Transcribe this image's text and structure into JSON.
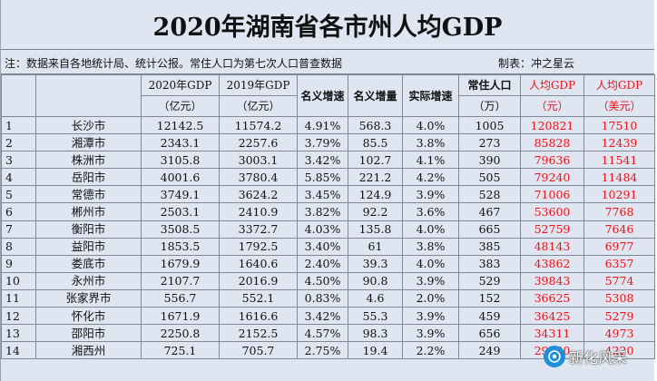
{
  "title": "2020年湖南省各市州人均GDP",
  "note": {
    "source": "注：数据来自各地统计局、统计公报。常住人口为第七次人口普查数据",
    "maker": "制表：冲之星云"
  },
  "header": {
    "gdp2020_line1": "2020年GDP",
    "gdp2020_line2": "（亿元）",
    "gdp2019_line1": "2019年GDP",
    "gdp2019_line2": "（亿元）",
    "nominal_rate": "名义增速",
    "nominal_increase": "名义增量",
    "real_rate": "实际增速",
    "population_line1": "常住人口",
    "population_line2": "（万）",
    "percap_cny_line1": "人均GDP",
    "percap_cny_line2": "（元）",
    "percap_usd_line1": "人均GDP",
    "percap_usd_line2": "（美元）"
  },
  "rows": [
    {
      "idx": "1",
      "city": "长沙市",
      "gdp2020": "12142.5",
      "gdp2019": "11574.2",
      "nominal_rate": "4.91%",
      "nominal_increase": "568.3",
      "real_rate": "4.0%",
      "population": "1005",
      "percap_cny": "120821",
      "percap_usd": "17510"
    },
    {
      "idx": "2",
      "city": "湘潭市",
      "gdp2020": "2343.1",
      "gdp2019": "2257.6",
      "nominal_rate": "3.79%",
      "nominal_increase": "85.5",
      "real_rate": "3.8%",
      "population": "273",
      "percap_cny": "85828",
      "percap_usd": "12439"
    },
    {
      "idx": "3",
      "city": "株洲市",
      "gdp2020": "3105.8",
      "gdp2019": "3003.1",
      "nominal_rate": "3.42%",
      "nominal_increase": "102.7",
      "real_rate": "4.1%",
      "population": "390",
      "percap_cny": "79636",
      "percap_usd": "11541"
    },
    {
      "idx": "4",
      "city": "岳阳市",
      "gdp2020": "4001.6",
      "gdp2019": "3780.4",
      "nominal_rate": "5.85%",
      "nominal_increase": "221.2",
      "real_rate": "4.2%",
      "population": "505",
      "percap_cny": "79240",
      "percap_usd": "11484"
    },
    {
      "idx": "5",
      "city": "常德市",
      "gdp2020": "3749.1",
      "gdp2019": "3624.2",
      "nominal_rate": "3.45%",
      "nominal_increase": "124.9",
      "real_rate": "3.9%",
      "population": "528",
      "percap_cny": "71006",
      "percap_usd": "10291"
    },
    {
      "idx": "6",
      "city": "郴州市",
      "gdp2020": "2503.1",
      "gdp2019": "2410.9",
      "nominal_rate": "3.82%",
      "nominal_increase": "92.2",
      "real_rate": "3.6%",
      "population": "467",
      "percap_cny": "53600",
      "percap_usd": "7768"
    },
    {
      "idx": "7",
      "city": "衡阳市",
      "gdp2020": "3508.5",
      "gdp2019": "3372.7",
      "nominal_rate": "4.03%",
      "nominal_increase": "135.8",
      "real_rate": "4.0%",
      "population": "665",
      "percap_cny": "52759",
      "percap_usd": "7646"
    },
    {
      "idx": "8",
      "city": "益阳市",
      "gdp2020": "1853.5",
      "gdp2019": "1792.5",
      "nominal_rate": "3.40%",
      "nominal_increase": "61",
      "real_rate": "3.8%",
      "population": "385",
      "percap_cny": "48143",
      "percap_usd": "6977"
    },
    {
      "idx": "9",
      "city": "娄底市",
      "gdp2020": "1679.9",
      "gdp2019": "1640.6",
      "nominal_rate": "2.40%",
      "nominal_increase": "39.3",
      "real_rate": "4.0%",
      "population": "383",
      "percap_cny": "43862",
      "percap_usd": "6357"
    },
    {
      "idx": "10",
      "city": "永州市",
      "gdp2020": "2107.7",
      "gdp2019": "2016.9",
      "nominal_rate": "4.50%",
      "nominal_increase": "90.8",
      "real_rate": "3.9%",
      "population": "529",
      "percap_cny": "39843",
      "percap_usd": "5774"
    },
    {
      "idx": "11",
      "city": "张家界市",
      "gdp2020": "556.7",
      "gdp2019": "552.1",
      "nominal_rate": "0.83%",
      "nominal_increase": "4.6",
      "real_rate": "2.0%",
      "population": "152",
      "percap_cny": "36625",
      "percap_usd": "5308"
    },
    {
      "idx": "12",
      "city": "怀化市",
      "gdp2020": "1671.9",
      "gdp2019": "1616.6",
      "nominal_rate": "3.42%",
      "nominal_increase": "55.3",
      "real_rate": "3.9%",
      "population": "459",
      "percap_cny": "36425",
      "percap_usd": "5279"
    },
    {
      "idx": "13",
      "city": "邵阳市",
      "gdp2020": "2250.8",
      "gdp2019": "2152.5",
      "nominal_rate": "4.57%",
      "nominal_increase": "98.3",
      "real_rate": "3.9%",
      "population": "656",
      "percap_cny": "34311",
      "percap_usd": "4973"
    },
    {
      "idx": "14",
      "city": "湘西州",
      "gdp2020": "725.1",
      "gdp2019": "705.7",
      "nominal_rate": "2.75%",
      "nominal_increase": "19.4",
      "real_rate": "2.2%",
      "population": "249",
      "percap_cny": "29120",
      "percap_usd": "4220"
    }
  ],
  "watermark": {
    "text": "新化风采",
    "icon": "wechat-channel-icon"
  },
  "colors": {
    "background": "#dfe6f1",
    "highlight_red": "#e8161b",
    "border": "#7f8895"
  }
}
